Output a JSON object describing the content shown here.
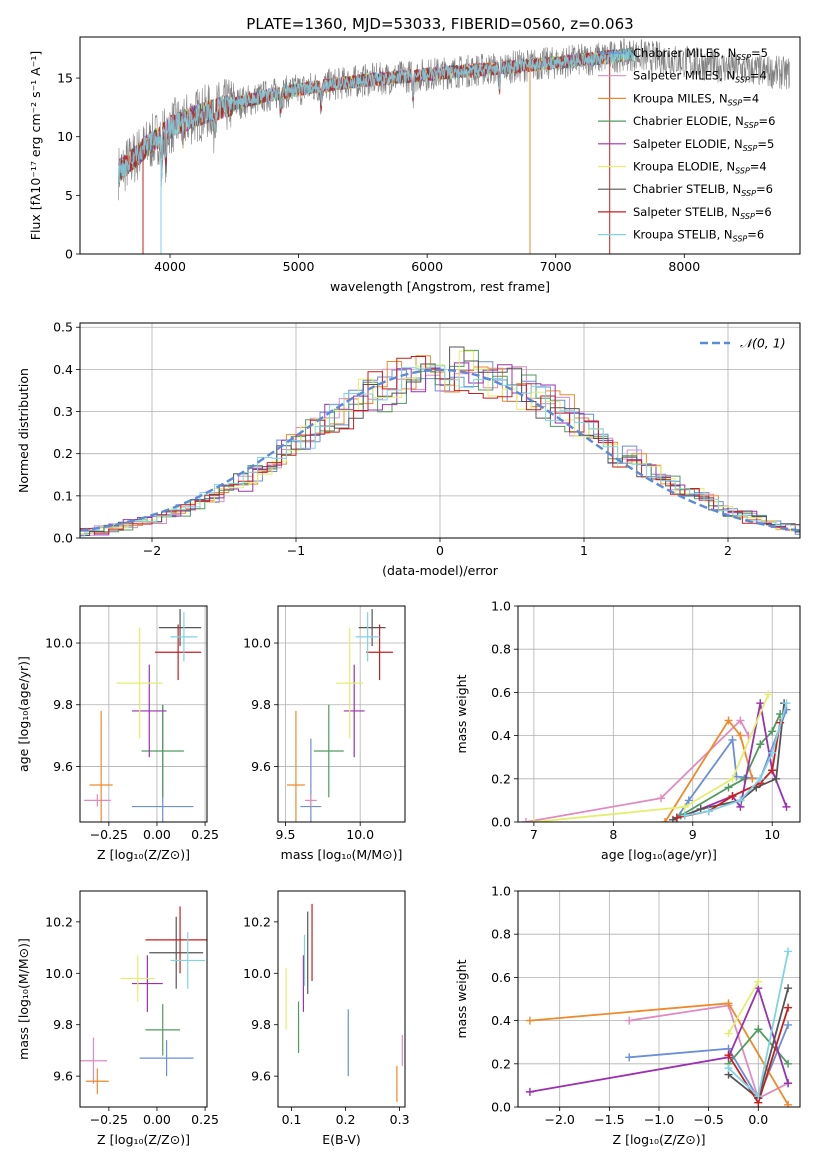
{
  "figure": {
    "title": "PLATE=1360, MJD=53033, FIBERID=0560, z=0.063",
    "legend_entries": [
      {
        "label": "Chabrier MILES, N",
        "sub": "SSP",
        "tail": "=5",
        "color": "#6a8fd8"
      },
      {
        "label": "Salpeter MILES, N",
        "sub": "SSP",
        "tail": "=4",
        "color": "#e08bc0"
      },
      {
        "label": "Kroupa MILES, N",
        "sub": "SSP",
        "tail": "=4",
        "color": "#ef8a2c"
      },
      {
        "label": "Chabrier ELODIE, N",
        "sub": "SSP",
        "tail": "=6",
        "color": "#4f9a5e"
      },
      {
        "label": "Salpeter ELODIE, N",
        "sub": "SSP",
        "tail": "=5",
        "color": "#9b30b0"
      },
      {
        "label": "Kroupa ELODIE, N",
        "sub": "SSP",
        "tail": "=4",
        "color": "#e4ee6e"
      },
      {
        "label": "Chabrier STELIB, N",
        "sub": "SSP",
        "tail": "=6",
        "color": "#555555"
      },
      {
        "label": "Salpeter STELIB, N",
        "sub": "SSP",
        "tail": "=6",
        "color": "#c81e1e"
      },
      {
        "label": "Kroupa STELIB, N",
        "sub": "SSP",
        "tail": "=6",
        "color": "#7fd3e6"
      }
    ],
    "data_color": "#808080"
  },
  "chart_data": [
    {
      "id": "spectrum",
      "type": "line",
      "xlabel": "wavelength [Angstrom, rest frame]",
      "ylabel": "Flux [fλ10⁻¹⁷ erg cm⁻² s⁻¹ A⁻¹]",
      "xlim": [
        3300,
        8900
      ],
      "ylim": [
        0,
        18.5
      ],
      "xticks": [
        4000,
        5000,
        6000,
        7000,
        8000
      ],
      "yticks": [
        0,
        5,
        10,
        15
      ],
      "series_note_continuum": [
        [
          3600,
          7.0
        ],
        [
          3800,
          9.0
        ],
        [
          4000,
          10.8
        ],
        [
          4200,
          11.8
        ],
        [
          4500,
          12.8
        ],
        [
          4800,
          13.6
        ],
        [
          5100,
          14.2
        ],
        [
          5500,
          14.8
        ],
        [
          6000,
          15.3
        ],
        [
          6500,
          15.8
        ],
        [
          7000,
          16.3
        ],
        [
          7500,
          16.9
        ],
        [
          7600,
          17.0
        ],
        [
          8000,
          16.4
        ],
        [
          8500,
          15.7
        ],
        [
          8800,
          15.4
        ]
      ]
    },
    {
      "id": "residuals",
      "type": "area",
      "xlabel": "(data-model)/error",
      "ylabel": "Normed distribution",
      "xlim": [
        -2.5,
        2.5
      ],
      "ylim": [
        0,
        0.51
      ],
      "xticks": [
        -2,
        -1,
        0,
        1,
        2
      ],
      "yticks": [
        0.0,
        0.1,
        0.2,
        0.3,
        0.4,
        0.5
      ],
      "gaussian_label": "𝒩(0, 1)",
      "gaussian_color": "#5a8ad8"
    },
    {
      "id": "age-vs-z",
      "type": "scatter",
      "xlabel": "Z [log₁₀(Z/Z⊙)]",
      "ylabel": "age  [log₁₀(age/yr)]",
      "xlim": [
        -0.4,
        0.26
      ],
      "ylim": [
        9.42,
        10.12
      ],
      "xticks": [
        -0.25,
        0.0,
        0.25
      ],
      "yticks": [
        9.6,
        9.8,
        10.0
      ],
      "points": [
        {
          "x": 0.03,
          "y": 9.47,
          "xerr": 0.16,
          "yerr": 0.33,
          "c": 0
        },
        {
          "x": -0.31,
          "y": 9.49,
          "xerr": 0.07,
          "yerr": 0.02,
          "c": 1
        },
        {
          "x": -0.29,
          "y": 9.54,
          "xerr": 0.06,
          "yerr": 0.24,
          "c": 2
        },
        {
          "x": 0.03,
          "y": 9.65,
          "xerr": 0.11,
          "yerr": 0.15,
          "c": 3
        },
        {
          "x": -0.04,
          "y": 9.78,
          "xerr": 0.09,
          "yerr": 0.15,
          "c": 4
        },
        {
          "x": -0.09,
          "y": 9.87,
          "xerr": 0.12,
          "yerr": 0.18,
          "c": 5
        },
        {
          "x": 0.12,
          "y": 10.05,
          "xerr": 0.11,
          "yerr": 0.06,
          "c": 6
        },
        {
          "x": 0.11,
          "y": 9.97,
          "xerr": 0.12,
          "yerr": 0.09,
          "c": 7
        },
        {
          "x": 0.14,
          "y": 10.02,
          "xerr": 0.07,
          "yerr": 0.08,
          "c": 8
        }
      ]
    },
    {
      "id": "age-vs-mass",
      "type": "scatter",
      "xlabel": "mass [log₁₀(M/M⊙)]",
      "ylabel": "",
      "xlim": [
        9.45,
        10.3
      ],
      "ylim": [
        9.42,
        10.12
      ],
      "xticks": [
        9.5,
        10.0
      ],
      "yticks": [
        9.6,
        9.8,
        10.0
      ],
      "points": [
        {
          "x": 9.67,
          "y": 9.47,
          "xerr": 0.07,
          "yerr": 0.22,
          "c": 0
        },
        {
          "x": 9.67,
          "y": 9.49,
          "xerr": 0.04,
          "yerr": 0.02,
          "c": 1
        },
        {
          "x": 9.57,
          "y": 9.54,
          "xerr": 0.06,
          "yerr": 0.24,
          "c": 2
        },
        {
          "x": 9.79,
          "y": 9.65,
          "xerr": 0.1,
          "yerr": 0.15,
          "c": 3
        },
        {
          "x": 9.96,
          "y": 9.78,
          "xerr": 0.07,
          "yerr": 0.15,
          "c": 4
        },
        {
          "x": 9.93,
          "y": 9.87,
          "xerr": 0.09,
          "yerr": 0.18,
          "c": 5
        },
        {
          "x": 10.08,
          "y": 10.05,
          "xerr": 0.09,
          "yerr": 0.06,
          "c": 6
        },
        {
          "x": 10.13,
          "y": 9.97,
          "xerr": 0.09,
          "yerr": 0.09,
          "c": 7
        },
        {
          "x": 10.05,
          "y": 10.02,
          "xerr": 0.08,
          "yerr": 0.08,
          "c": 8
        }
      ]
    },
    {
      "id": "weight-vs-age",
      "type": "line",
      "xlabel": "age  [log₁₀(age/yr)]",
      "ylabel": "mass weight",
      "xlim": [
        6.8,
        10.35
      ],
      "ylim": [
        0,
        1.0
      ],
      "xticks": [
        7,
        8,
        9,
        10
      ],
      "yticks": [
        0.0,
        0.2,
        0.4,
        0.6,
        0.8,
        1.0
      ],
      "series": [
        {
          "c": 0,
          "x": [
            8.8,
            8.95,
            9.5,
            9.55,
            9.85,
            10.18
          ],
          "y": [
            0.02,
            0.1,
            0.38,
            0.21,
            0.2,
            0.52
          ]
        },
        {
          "c": 1,
          "x": [
            6.9,
            8.6,
            9.6,
            9.7
          ],
          "y": [
            0.0,
            0.11,
            0.47,
            0.4
          ]
        },
        {
          "c": 2,
          "x": [
            8.65,
            9.45,
            9.6,
            9.75
          ],
          "y": [
            0.0,
            0.47,
            0.4,
            0.2
          ]
        },
        {
          "c": 3,
          "x": [
            8.85,
            9.45,
            9.65,
            9.85,
            10.0,
            10.1
          ],
          "y": [
            0.03,
            0.16,
            0.2,
            0.36,
            0.42,
            0.5
          ]
        },
        {
          "c": 4,
          "x": [
            8.9,
            9.5,
            9.6,
            9.85,
            10.0,
            10.18
          ],
          "y": [
            0.03,
            0.12,
            0.07,
            0.55,
            0.24,
            0.07
          ]
        },
        {
          "c": 5,
          "x": [
            7.0,
            8.9,
            9.5,
            9.95
          ],
          "y": [
            0.0,
            0.07,
            0.2,
            0.59
          ]
        },
        {
          "c": 6,
          "x": [
            8.75,
            9.1,
            9.6,
            9.8,
            10.05,
            10.15
          ],
          "y": [
            0.01,
            0.06,
            0.1,
            0.16,
            0.2,
            0.55
          ]
        },
        {
          "c": 7,
          "x": [
            8.8,
            9.2,
            9.5,
            9.85,
            10.0,
            10.1
          ],
          "y": [
            0.02,
            0.05,
            0.12,
            0.18,
            0.24,
            0.46
          ]
        },
        {
          "c": 8,
          "x": [
            8.9,
            9.2,
            9.6,
            9.85,
            10.0,
            10.18
          ],
          "y": [
            0.03,
            0.05,
            0.1,
            0.2,
            0.32,
            0.55
          ]
        }
      ]
    },
    {
      "id": "mass-vs-z",
      "type": "scatter",
      "xlabel": "Z [log₁₀(Z/Z⊙)]",
      "ylabel": "mass [log₁₀(M/M⊙)]",
      "xlim": [
        -0.4,
        0.26
      ],
      "ylim": [
        9.48,
        10.32
      ],
      "xticks": [
        -0.25,
        0.0,
        0.25
      ],
      "yticks": [
        9.6,
        9.8,
        10.0,
        10.2
      ],
      "points": [
        {
          "x": 0.05,
          "y": 9.67,
          "xerr": 0.14,
          "yerr": 0.07,
          "c": 0
        },
        {
          "x": -0.33,
          "y": 9.66,
          "xerr": 0.07,
          "yerr": 0.09,
          "c": 1
        },
        {
          "x": -0.31,
          "y": 9.58,
          "xerr": 0.06,
          "yerr": 0.05,
          "c": 2
        },
        {
          "x": 0.03,
          "y": 9.78,
          "xerr": 0.09,
          "yerr": 0.1,
          "c": 3
        },
        {
          "x": -0.05,
          "y": 9.96,
          "xerr": 0.08,
          "yerr": 0.11,
          "c": 4
        },
        {
          "x": -0.1,
          "y": 9.98,
          "xerr": 0.09,
          "yerr": 0.09,
          "c": 5
        },
        {
          "x": 0.1,
          "y": 10.08,
          "xerr": 0.14,
          "yerr": 0.14,
          "c": 6
        },
        {
          "x": 0.12,
          "y": 10.13,
          "xerr": 0.18,
          "yerr": 0.13,
          "c": 7
        },
        {
          "x": 0.16,
          "y": 10.05,
          "xerr": 0.09,
          "yerr": 0.11,
          "c": 8
        }
      ]
    },
    {
      "id": "mass-vs-ebv",
      "type": "scatter",
      "xlabel": "E(B-V)",
      "ylabel": "",
      "xlim": [
        0.075,
        0.31
      ],
      "ylim": [
        9.48,
        10.32
      ],
      "xticks": [
        0.1,
        0.2,
        0.3
      ],
      "yticks": [
        9.6,
        9.8,
        10.0,
        10.2
      ],
      "points": [
        {
          "x": 0.205,
          "y": 9.73,
          "xerr": 0.0,
          "yerr": 0.13,
          "c": 0
        },
        {
          "x": 0.305,
          "y": 9.7,
          "xerr": 0.0,
          "yerr": 0.06,
          "c": 1
        },
        {
          "x": 0.295,
          "y": 9.57,
          "xerr": 0.0,
          "yerr": 0.07,
          "c": 2
        },
        {
          "x": 0.113,
          "y": 9.79,
          "xerr": 0.0,
          "yerr": 0.1,
          "c": 3
        },
        {
          "x": 0.122,
          "y": 9.96,
          "xerr": 0.0,
          "yerr": 0.11,
          "c": 4
        },
        {
          "x": 0.09,
          "y": 9.9,
          "xerr": 0.0,
          "yerr": 0.12,
          "c": 5
        },
        {
          "x": 0.13,
          "y": 10.08,
          "xerr": 0.0,
          "yerr": 0.16,
          "c": 6
        },
        {
          "x": 0.138,
          "y": 10.12,
          "xerr": 0.0,
          "yerr": 0.15,
          "c": 7
        },
        {
          "x": 0.124,
          "y": 10.05,
          "xerr": 0.0,
          "yerr": 0.1,
          "c": 8
        }
      ]
    },
    {
      "id": "weight-vs-z",
      "type": "line",
      "xlabel": "Z [log₁₀(Z/Z⊙)]",
      "ylabel": "mass weight",
      "xlim": [
        -2.42,
        0.42
      ],
      "ylim": [
        0,
        1.0
      ],
      "xticks": [
        -2.0,
        -1.5,
        -1.0,
        -0.5,
        0.0
      ],
      "yticks": [
        0.0,
        0.2,
        0.4,
        0.6,
        0.8,
        1.0
      ],
      "series": [
        {
          "c": 0,
          "x": [
            -1.3,
            -0.3,
            0.0,
            0.3
          ],
          "y": [
            0.23,
            0.27,
            0.04,
            0.38
          ]
        },
        {
          "c": 1,
          "x": [
            -1.3,
            -0.3,
            0.0,
            0.3
          ],
          "y": [
            0.4,
            0.47,
            0.04,
            0.11
          ]
        },
        {
          "c": 2,
          "x": [
            -2.3,
            -0.3,
            0.3
          ],
          "y": [
            0.4,
            0.48,
            0.01
          ]
        },
        {
          "c": 3,
          "x": [
            -0.3,
            0.0,
            0.3
          ],
          "y": [
            0.2,
            0.36,
            0.2
          ]
        },
        {
          "c": 4,
          "x": [
            -2.3,
            -0.3,
            0.0,
            0.3
          ],
          "y": [
            0.07,
            0.23,
            0.55,
            0.11
          ]
        },
        {
          "c": 5,
          "x": [
            -0.3,
            0.0
          ],
          "y": [
            0.34,
            0.58
          ]
        },
        {
          "c": 6,
          "x": [
            -0.3,
            0.0,
            0.3
          ],
          "y": [
            0.15,
            0.04,
            0.55
          ]
        },
        {
          "c": 7,
          "x": [
            -0.3,
            0.0,
            0.3
          ],
          "y": [
            0.24,
            0.02,
            0.46
          ]
        },
        {
          "c": 8,
          "x": [
            -0.3,
            0.0,
            0.3
          ],
          "y": [
            0.18,
            0.05,
            0.72
          ]
        }
      ]
    }
  ]
}
